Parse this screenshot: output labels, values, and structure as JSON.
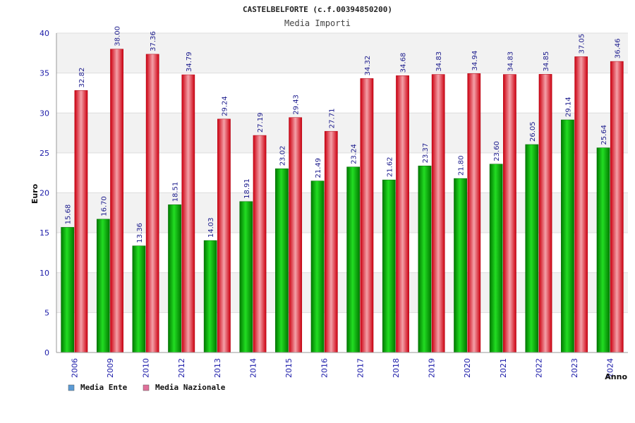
{
  "header": {
    "title": "CASTELBELFORTE (c.f.00394850200)",
    "subtitle": "Media Importi"
  },
  "legend": [
    {
      "label": "Media Ente",
      "color": "#5b9bd5"
    },
    {
      "label": "Media Nazionale",
      "color": "#e0709a"
    }
  ],
  "colors": {
    "ente_bar": "#00b000",
    "nazionale_bar": "#ee1c25",
    "band": "#f2f2f2",
    "tick_text": "#1a1aa8"
  },
  "chart_data": {
    "type": "bar",
    "title": "Media Importi",
    "xlabel": "Anno",
    "ylabel": "Euro",
    "ylim": [
      0,
      40
    ],
    "yticks": [
      0,
      5,
      10,
      15,
      20,
      25,
      30,
      35,
      40
    ],
    "categories": [
      "2006",
      "2009",
      "2010",
      "2012",
      "2013",
      "2014",
      "2015",
      "2016",
      "2017",
      "2018",
      "2019",
      "2020",
      "2021",
      "2022",
      "2023",
      "2024"
    ],
    "series": [
      {
        "name": "Media Ente",
        "values": [
          15.68,
          16.7,
          13.36,
          18.51,
          14.03,
          18.91,
          23.02,
          21.49,
          23.24,
          21.62,
          23.37,
          21.8,
          23.6,
          26.05,
          29.14,
          25.64
        ],
        "labels": [
          "15.68",
          "16.70",
          "13.36",
          "18.51",
          "14.03",
          "18.91",
          "23.02",
          "21.49",
          "23.24",
          "21.62",
          "23.37",
          "21.80",
          "23.60",
          "26.05",
          "29.14",
          "25.64"
        ]
      },
      {
        "name": "Media Nazionale",
        "values": [
          32.82,
          38.0,
          37.36,
          34.79,
          29.24,
          27.19,
          29.43,
          27.71,
          34.32,
          34.68,
          34.83,
          34.94,
          34.83,
          34.85,
          37.05,
          36.46
        ],
        "labels": [
          "32.82",
          "38.00",
          "37.36",
          "34.79",
          "29.24",
          "27.19",
          "29.43",
          "27.71",
          "34.32",
          "34.68",
          "34.83",
          "34.94",
          "34.83",
          "34.85",
          "37.05",
          "36.46"
        ]
      }
    ],
    "grid": true,
    "legend_position": "bottom-left"
  }
}
